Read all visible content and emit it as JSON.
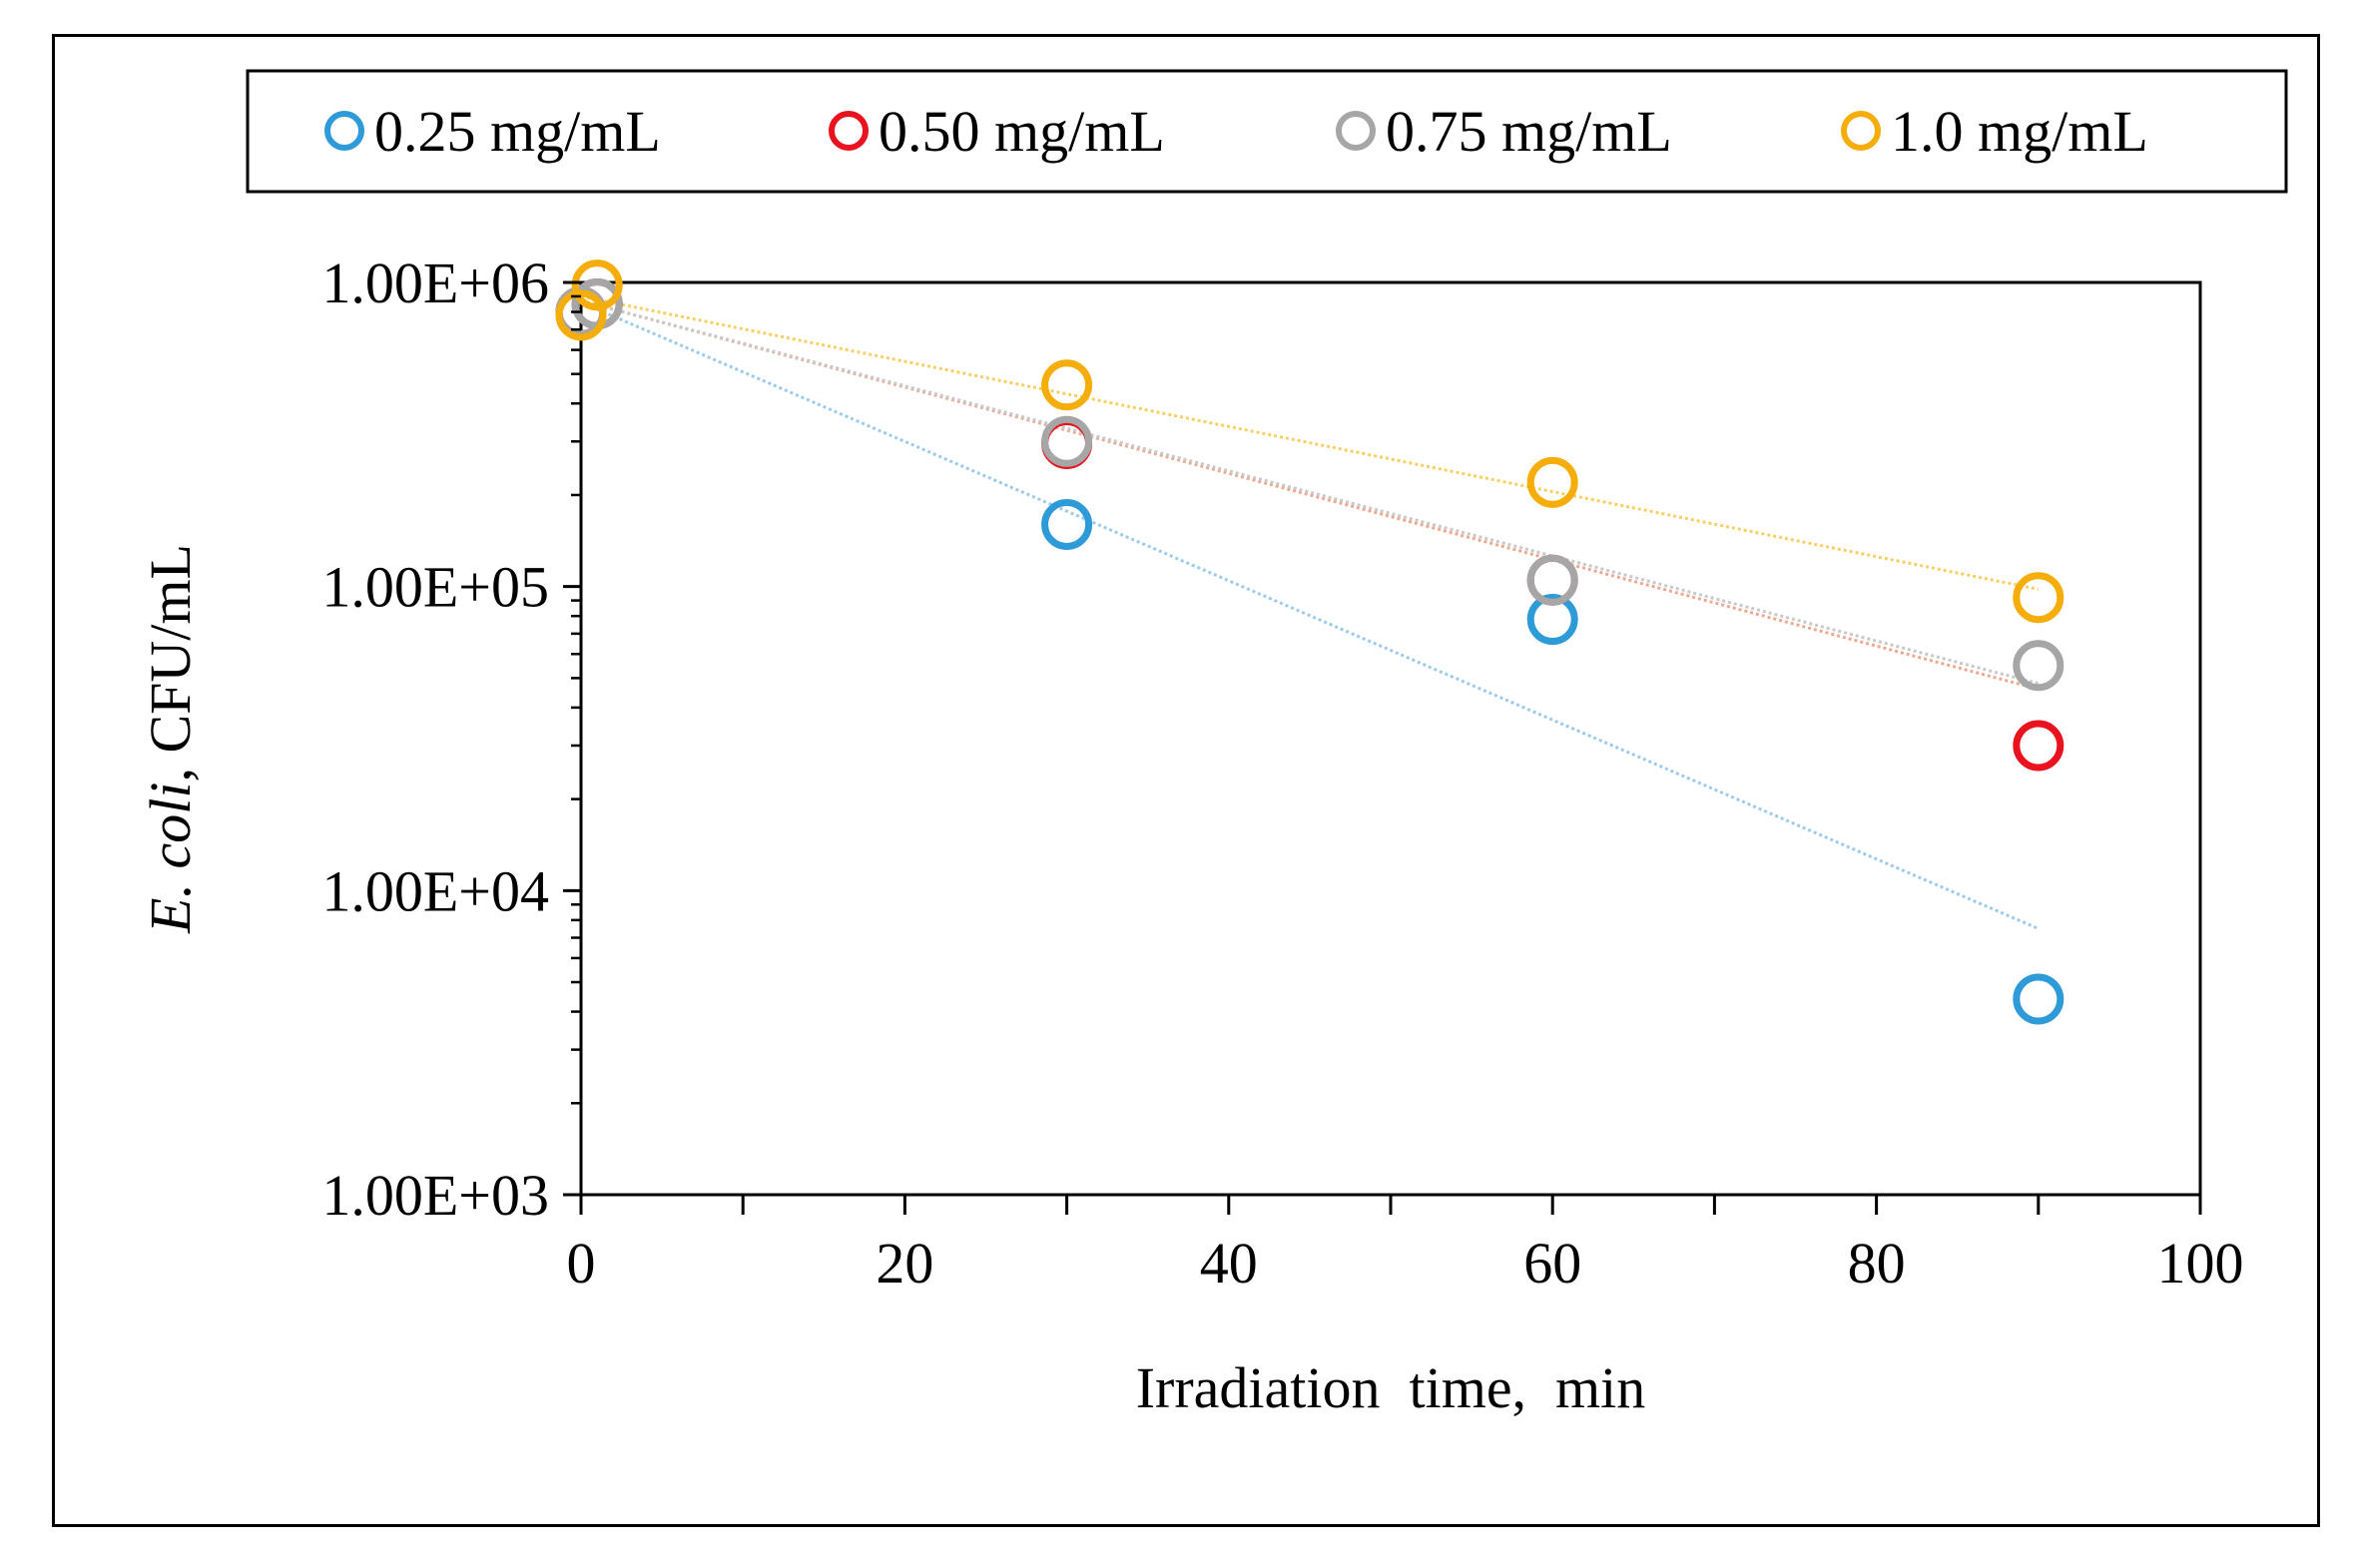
{
  "chart_data": {
    "type": "scatter",
    "title": "",
    "xlabel": "Irradiation  time,  min",
    "ylabel_italic": "E. coli",
    "ylabel_rest": ", CFU/mL",
    "ylabel": "E. coli, CFU/mL",
    "xlim": [
      0,
      100
    ],
    "ylim": [
      1000,
      1000000
    ],
    "yscale": "log",
    "x_ticks": [
      0,
      20,
      40,
      60,
      80,
      100
    ],
    "x_minor_ticks": [
      10,
      30,
      50,
      70,
      90
    ],
    "x_tick_labels": [
      "0",
      "20",
      "40",
      "60",
      "80",
      "100"
    ],
    "y_ticks": [
      1000,
      10000,
      100000,
      1000000
    ],
    "y_tick_labels": [
      "1.00E+03",
      "1.00E+04",
      "1.00E+05",
      "1.00E+06"
    ],
    "legend_position": "top",
    "series": [
      {
        "name": "0.25 mg/mL",
        "color": "#2e9bd8",
        "trend_color": "#9ccbea",
        "points": [
          [
            0,
            800000
          ],
          [
            1,
            850000
          ],
          [
            30,
            160000
          ],
          [
            60,
            78000
          ],
          [
            90,
            4400
          ]
        ],
        "trendline": [
          [
            0,
            860000
          ],
          [
            90,
            7500
          ]
        ]
      },
      {
        "name": "0.50 mg/mL",
        "color": "#e8131e",
        "trend_color": "#f0a78f",
        "points": [
          [
            0,
            800000
          ],
          [
            1,
            850000
          ],
          [
            30,
            295000
          ],
          [
            60,
            105000
          ],
          [
            90,
            30000
          ]
        ],
        "trendline": [
          [
            0,
            870000
          ],
          [
            90,
            46000
          ]
        ]
      },
      {
        "name": "0.75 mg/mL",
        "color": "#a6a6a6",
        "trend_color": "#c9c9c9",
        "points": [
          [
            0,
            800000
          ],
          [
            1,
            850000
          ],
          [
            30,
            300000
          ],
          [
            60,
            105000
          ],
          [
            90,
            55000
          ]
        ],
        "trendline": [
          [
            0,
            870000
          ],
          [
            90,
            48000
          ]
        ]
      },
      {
        "name": "1.0 mg/mL",
        "color": "#f5ad0a",
        "trend_color": "#f7cf63",
        "points": [
          [
            0,
            780000
          ],
          [
            1,
            980000
          ],
          [
            30,
            460000
          ],
          [
            60,
            220000
          ],
          [
            90,
            92000
          ]
        ],
        "trendline": [
          [
            0,
            900000
          ],
          [
            90,
            98000
          ]
        ]
      }
    ]
  }
}
